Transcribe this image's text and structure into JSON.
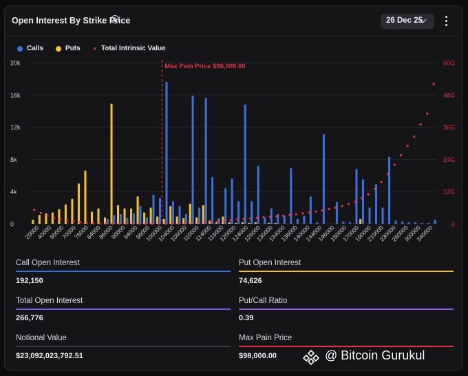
{
  "header": {
    "title": "Open Interest By Strike Price",
    "date_label": "26 Dec 25"
  },
  "legend": {
    "calls": "Calls",
    "puts": "Puts",
    "total": "Total Intrinsic Value"
  },
  "colors": {
    "calls": "#3b6fe0",
    "puts": "#f2c230",
    "total": "#e0354a",
    "grid": "#26262c"
  },
  "chart_data": {
    "type": "bar",
    "categories": [
      "20000",
      "30000",
      "40000",
      "50000",
      "60000",
      "65000",
      "70000",
      "75000",
      "80000",
      "82000",
      "84000",
      "85000",
      "86000",
      "88000",
      "90000",
      "92000",
      "94000",
      "95000",
      "96000",
      "98000",
      "100000",
      "102000",
      "104000",
      "105000",
      "106000",
      "108000",
      "110000",
      "112000",
      "114000",
      "115000",
      "116000",
      "118000",
      "120000",
      "122000",
      "124000",
      "125000",
      "126000",
      "128000",
      "130000",
      "135000",
      "136000",
      "138000",
      "140000",
      "145000",
      "146000",
      "150000",
      "155000",
      "160000",
      "170000",
      "180000",
      "190000",
      "200000",
      "210000",
      "220000",
      "230000",
      "240000",
      "260000",
      "280000",
      "300000",
      "320000",
      "340000",
      "360000"
    ],
    "tick_labels": [
      "20000",
      "40000",
      "60000",
      "70000",
      "78000",
      "84000",
      "86000",
      "90000",
      "94000",
      "96000",
      "100000",
      "104000",
      "106000",
      "110000",
      "114000",
      "116000",
      "120000",
      "124000",
      "126000",
      "130000",
      "134000",
      "136000",
      "140000",
      "144000",
      "146000",
      "150000",
      "170000",
      "190000",
      "210000",
      "230000",
      "260000",
      "300000",
      "340000"
    ],
    "series": [
      {
        "name": "Calls",
        "values": [
          0,
          0,
          0,
          0,
          0,
          0,
          0,
          0,
          0,
          0,
          0,
          600,
          1100,
          1200,
          700,
          1300,
          2200,
          800,
          3600,
          3200,
          17600,
          2800,
          2200,
          1200,
          15900,
          2000,
          15600,
          5800,
          700,
          4400,
          5600,
          2800,
          14800,
          2800,
          7200,
          800,
          1900,
          1200,
          1000,
          6900,
          600,
          1000,
          3400,
          200,
          11100,
          0,
          2700,
          300,
          200,
          6800,
          5500,
          2000,
          4900,
          2000,
          8300,
          400,
          300,
          200,
          200,
          100,
          100,
          500
        ],
        "yAxis": "left"
      },
      {
        "name": "Puts",
        "values": [
          500,
          1100,
          1300,
          1400,
          1800,
          2400,
          3100,
          5000,
          6600,
          1500,
          1900,
          800,
          14900,
          2300,
          1900,
          1900,
          3400,
          1400,
          2000,
          900,
          600,
          2200,
          900,
          700,
          2500,
          800,
          2300,
          400,
          200,
          900,
          200,
          100,
          200,
          100,
          200,
          0,
          100,
          100,
          0,
          0,
          0,
          0,
          0,
          0,
          0,
          0,
          0,
          0,
          0,
          0,
          600,
          0,
          0,
          0,
          0,
          0,
          0,
          0,
          0,
          0,
          0,
          0
        ],
        "yAxis": "left"
      },
      {
        "name": "Total Intrinsic Value",
        "unit": "G",
        "yAxis": "right",
        "values": [
          5.2,
          4.0,
          3.0,
          2.2,
          1.6,
          1.2,
          0.9,
          0.6,
          0.4,
          0.3,
          0.2,
          0.15,
          0.1,
          0.08,
          0.06,
          0.05,
          0.04,
          0.03,
          0.02,
          0.01,
          0.02,
          0.05,
          0.1,
          0.18,
          0.3,
          0.45,
          0.6,
          0.8,
          1.0,
          1.2,
          1.4,
          1.6,
          1.8,
          2.0,
          2.2,
          2.4,
          2.6,
          2.8,
          3.0,
          3.3,
          3.6,
          3.9,
          4.2,
          4.6,
          5.0,
          5.5,
          6.0,
          6.6,
          7.3,
          8.2,
          9.5,
          11.0,
          13.0,
          15.5,
          18.5,
          22.0,
          25.5,
          29.0,
          32.5,
          37.0,
          41.0,
          52.0
        ]
      }
    ],
    "ylim": [
      0,
      20000
    ],
    "yticks": [
      "0",
      "4k",
      "8k",
      "12k",
      "16k",
      "20k"
    ],
    "y2lim": [
      0,
      60
    ],
    "y2ticks": [
      "0",
      "12G",
      "24G",
      "36G",
      "48G",
      "60G"
    ],
    "max_pain": {
      "label": "Max Pain Price $98,000.00",
      "strike": "98000"
    },
    "grid": true,
    "legend_position": "top-left"
  },
  "stats": [
    {
      "label": "Call Open Interest",
      "value": "192,150",
      "color": "#3b6fe0"
    },
    {
      "label": "Put Open Interest",
      "value": "74,626",
      "color": "#f2c230"
    },
    {
      "label": "Total Open Interest",
      "value": "266,776",
      "color": "#6a5fd8"
    },
    {
      "label": "Put/Call Ratio",
      "value": "0.39",
      "color": "#8a5fd8"
    },
    {
      "label": "Notional Value",
      "value": "$23,092,023,792.51",
      "color": "#3a3a42"
    },
    {
      "label": "Max Pain Price",
      "value": "$98,000.00",
      "color": "#e0354a"
    }
  ],
  "watermark": {
    "text": "@ Bitcoin Gurukul"
  }
}
